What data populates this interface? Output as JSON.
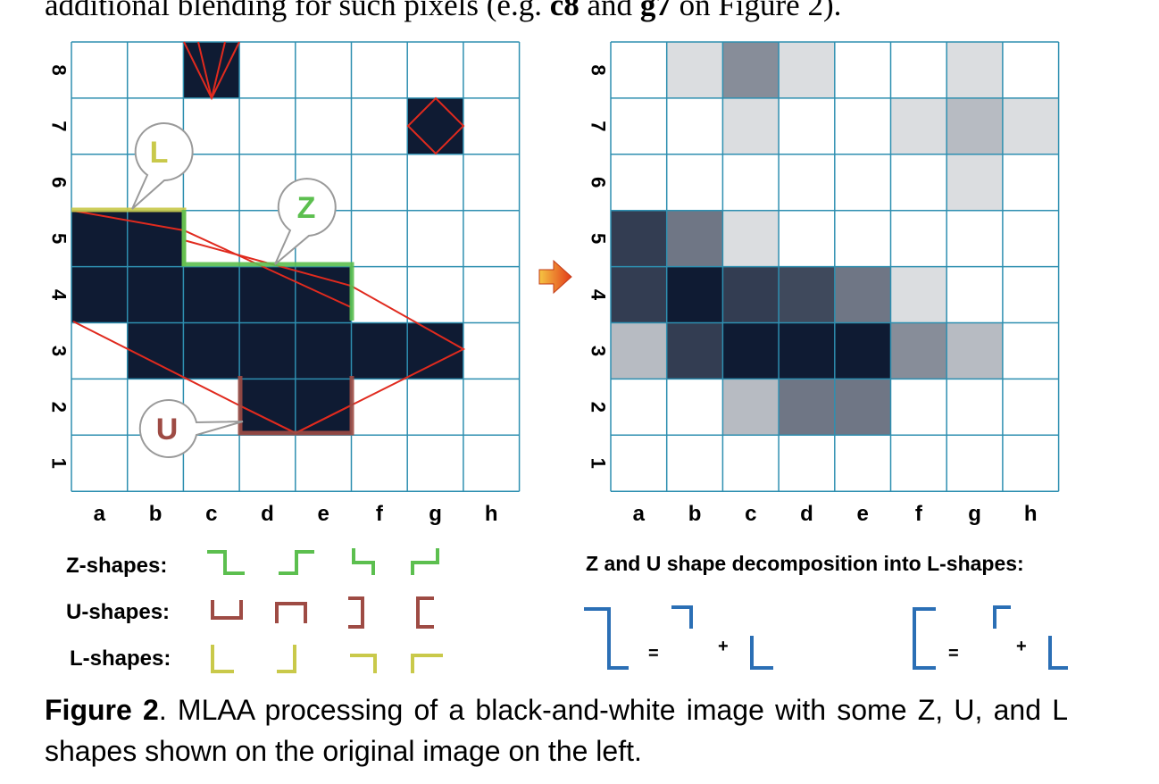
{
  "top_text": {
    "before_c8": "additional blending for such pixels (e.g. ",
    "c8": "c8",
    "and": " and ",
    "g7": "g7",
    "after_g7": " on Figure 2)."
  },
  "grid": {
    "columns": [
      "a",
      "b",
      "c",
      "d",
      "e",
      "f",
      "g",
      "h"
    ],
    "rows": [
      "8",
      "7",
      "6",
      "5",
      "4",
      "3",
      "2",
      "1"
    ],
    "line_color": "#2e8fb0",
    "dark_color": "#0f1b33"
  },
  "left_grid": {
    "black_cells": [
      "c8",
      "g7",
      "a5",
      "b5",
      "a4",
      "b4",
      "c4",
      "d4",
      "e4",
      "b3",
      "c3",
      "d3",
      "e3",
      "f3",
      "g3",
      "d2",
      "e2"
    ]
  },
  "right_grid": {
    "cell_shades": {
      "b8": 0.15,
      "c8": 0.5,
      "d8": 0.15,
      "g8": 0.15,
      "c7": 0.15,
      "f7": 0.15,
      "g7": 0.3,
      "h7": 0.15,
      "g6": 0.15,
      "a5": 0.85,
      "b5": 0.6,
      "c5": 0.15,
      "a4": 0.85,
      "b4": 1.0,
      "c4": 0.85,
      "d4": 0.8,
      "e4": 0.6,
      "f4": 0.15,
      "a3": 0.3,
      "b3": 0.85,
      "c3": 1.0,
      "d3": 1.0,
      "e3": 1.0,
      "f3": 0.5,
      "g3": 0.3,
      "c2": 0.3,
      "d2": 0.6,
      "e2": 0.6
    }
  },
  "callouts": {
    "L": "L",
    "Z": "Z",
    "U": "U"
  },
  "legend": {
    "z_label": "Z-shapes:",
    "u_label": "U-shapes:",
    "l_label": "L-shapes:",
    "decomposition_label": "Z and U shape decomposition into L-shapes:",
    "equals": "=",
    "plus": "+",
    "colors": {
      "z": "#5cbf4f",
      "u": "#9e4b44",
      "l": "#c9c94a",
      "decomp": "#2b6fb5"
    }
  },
  "caption": {
    "label": "Figure 2",
    "text": ". MLAA processing of a black-and-white image with some Z, U, and L shapes shown on the original image on the left."
  }
}
